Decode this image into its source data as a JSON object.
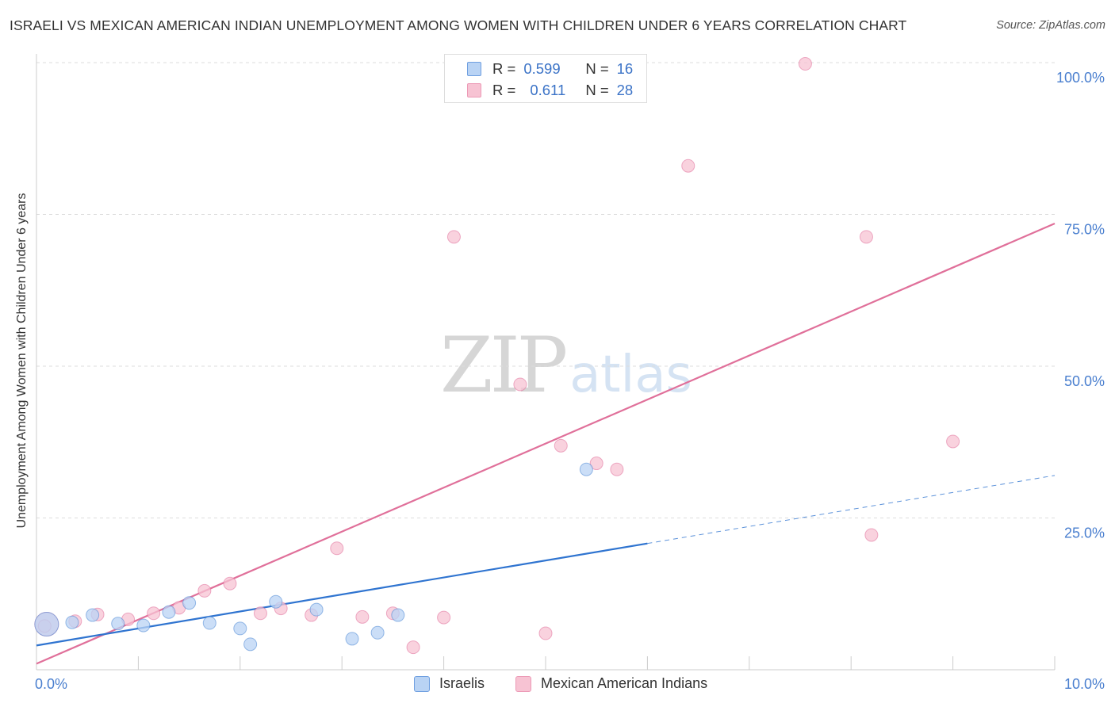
{
  "header": {
    "title": "ISRAELI VS MEXICAN AMERICAN INDIAN UNEMPLOYMENT AMONG WOMEN WITH CHILDREN UNDER 6 YEARS CORRELATION CHART",
    "source": "Source: ZipAtlas.com"
  },
  "watermark": {
    "zip": "ZIP",
    "atlas": "atlas"
  },
  "legend": {
    "r_label": "R =",
    "n_label": "N =",
    "entries": [
      {
        "r": "0.599",
        "n": "16"
      },
      {
        "r": "0.611",
        "n": "28"
      }
    ]
  },
  "chart_data": {
    "type": "scatter",
    "title": "ISRAELI VS MEXICAN AMERICAN INDIAN UNEMPLOYMENT AMONG WOMEN WITH CHILDREN UNDER 6 YEARS CORRELATION CHART",
    "xlabel": "",
    "ylabel": "Unemployment Among Women with Children Under 6 years",
    "xlim": [
      0,
      10
    ],
    "ylim": [
      0,
      105
    ],
    "x_tick_labels": [
      "0.0%",
      "10.0%"
    ],
    "y_tick_labels": [
      "25.0%",
      "50.0%",
      "75.0%",
      "100.0%"
    ],
    "y_ticks": [
      25,
      50,
      75,
      100
    ],
    "grid": true,
    "legend_position": "top-center",
    "series": [
      {
        "name": "Israelis",
        "color": "#4a86d4",
        "fill": "#b9d3f4",
        "r": 0.599,
        "n": 16,
        "trend": {
          "x0": 0.0,
          "y0": 4.0,
          "x1": 6.0,
          "y1": 20.8,
          "dashed_to_x": 10.0,
          "dashed_to_y": 32.0
        },
        "points": [
          {
            "x": 0.1,
            "y": 7.5,
            "size": "large"
          },
          {
            "x": 0.35,
            "y": 7.8
          },
          {
            "x": 0.55,
            "y": 9.0
          },
          {
            "x": 0.8,
            "y": 7.6
          },
          {
            "x": 1.05,
            "y": 7.3
          },
          {
            "x": 1.3,
            "y": 9.5
          },
          {
            "x": 1.5,
            "y": 11.0
          },
          {
            "x": 1.7,
            "y": 7.7
          },
          {
            "x": 2.0,
            "y": 6.8
          },
          {
            "x": 2.1,
            "y": 4.2
          },
          {
            "x": 2.35,
            "y": 11.2
          },
          {
            "x": 2.75,
            "y": 9.9
          },
          {
            "x": 3.1,
            "y": 5.1
          },
          {
            "x": 3.35,
            "y": 6.1
          },
          {
            "x": 3.55,
            "y": 9.0
          },
          {
            "x": 5.4,
            "y": 33.0
          }
        ]
      },
      {
        "name": "Mexican American Indians",
        "color": "#e0709a",
        "fill": "#f7c3d3",
        "r": 0.611,
        "n": 28,
        "trend": {
          "x0": 0.0,
          "y0": 1.0,
          "x1": 10.0,
          "y1": 73.5
        },
        "points": [
          {
            "x": 0.1,
            "y": 7.5,
            "size": "large"
          },
          {
            "x": 0.38,
            "y": 8.0
          },
          {
            "x": 0.6,
            "y": 9.1
          },
          {
            "x": 0.9,
            "y": 8.3
          },
          {
            "x": 1.15,
            "y": 9.3
          },
          {
            "x": 1.4,
            "y": 10.2
          },
          {
            "x": 1.65,
            "y": 13.0
          },
          {
            "x": 1.9,
            "y": 14.2
          },
          {
            "x": 2.2,
            "y": 9.3
          },
          {
            "x": 2.4,
            "y": 10.1
          },
          {
            "x": 2.7,
            "y": 9.0
          },
          {
            "x": 2.95,
            "y": 20.0
          },
          {
            "x": 3.2,
            "y": 8.7
          },
          {
            "x": 3.5,
            "y": 9.3
          },
          {
            "x": 3.7,
            "y": 3.7
          },
          {
            "x": 4.0,
            "y": 8.6
          },
          {
            "x": 4.1,
            "y": 71.3
          },
          {
            "x": 4.75,
            "y": 47.0
          },
          {
            "x": 5.0,
            "y": 6.0
          },
          {
            "x": 5.15,
            "y": 36.9
          },
          {
            "x": 5.5,
            "y": 34.0
          },
          {
            "x": 5.7,
            "y": 33.0
          },
          {
            "x": 6.4,
            "y": 83.0
          },
          {
            "x": 7.55,
            "y": 99.8
          },
          {
            "x": 8.15,
            "y": 71.3
          },
          {
            "x": 8.2,
            "y": 22.2
          },
          {
            "x": 9.0,
            "y": 37.6
          },
          {
            "x": 0.08,
            "y": 7.2
          }
        ]
      }
    ]
  }
}
